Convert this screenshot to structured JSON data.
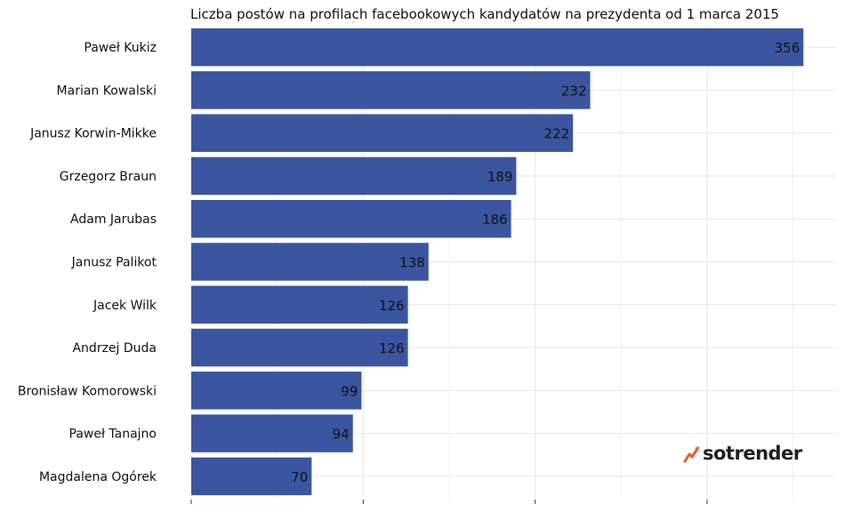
{
  "chart_data": {
    "type": "bar",
    "orientation": "horizontal",
    "title": "Liczba postów na profilach facebookowych kandydatów na prezydenta od 1 marca 2015",
    "categories": [
      "Paweł Kukiz",
      "Marian Kowalski",
      "Janusz Korwin-Mikke",
      "Grzegorz Braun",
      "Adam Jarubas",
      "Janusz Palikot",
      "Jacek Wilk",
      "Andrzej Duda",
      "Bronisław Komorowski",
      "Paweł Tanajno",
      "Magdalena Ogórek"
    ],
    "values": [
      356,
      232,
      222,
      189,
      186,
      138,
      126,
      126,
      99,
      94,
      70
    ],
    "xlim": [
      0,
      375
    ],
    "grid": true,
    "bar_color": "#3b55a0",
    "grid_color": "#e6e6e6"
  },
  "logo": {
    "text": "sotrender",
    "accent_color": "#f15a24"
  }
}
